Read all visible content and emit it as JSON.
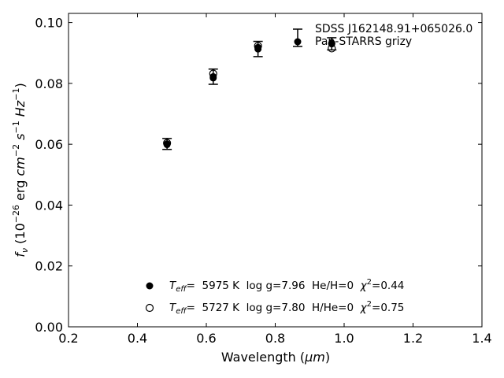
{
  "chart_data": {
    "type": "scatter",
    "title": "",
    "xlabel": "Wavelength (μm)",
    "ylabel": "f_ν (10^-26 erg cm^-2 s^-1 Hz^-1)",
    "xlim": [
      0.2,
      1.4
    ],
    "ylim": [
      0.0,
      0.103
    ],
    "x_ticks": [
      0.2,
      0.4,
      0.6,
      0.8,
      1.0,
      1.2,
      1.4
    ],
    "x_tick_labels": [
      "0.2",
      "0.4",
      "0.6",
      "0.8",
      "1.0",
      "1.2",
      "1.4"
    ],
    "y_ticks": [
      0.0,
      0.02,
      0.04,
      0.06,
      0.08,
      0.1
    ],
    "y_tick_labels": [
      "0.00",
      "0.02",
      "0.04",
      "0.06",
      "0.08",
      "0.10"
    ],
    "grid": false,
    "legend_position": "top-right",
    "legend": {
      "object": "SDSS J162148.91+065026.0",
      "survey": "Pan-STARRS grizy"
    },
    "series": [
      {
        "name": "Pan-STARRS grizy",
        "marker": "filled-circle-errorbar",
        "x": [
          0.486,
          0.62,
          0.75,
          0.964
        ],
        "y": [
          0.0601,
          0.0822,
          0.0913,
          0.093
        ],
        "yerr": [
          0.0018,
          0.0025,
          0.0025,
          0.002
        ]
      },
      {
        "name": "Teff= 5975 K log g=7.96 He/H=0 χ2=0.44",
        "marker": "filled-circle",
        "x": [
          0.486,
          0.62,
          0.75,
          0.964
        ],
        "y": [
          0.0599,
          0.0818,
          0.0918,
          0.0932
        ]
      },
      {
        "name": "Teff= 5727 K log g=7.80 H/He=0 χ2=0.75",
        "marker": "open-circle",
        "x": [
          0.486,
          0.62,
          0.75,
          0.964
        ],
        "y": [
          0.0604,
          0.0832,
          0.0923,
          0.0915
        ]
      }
    ],
    "model_legend": [
      {
        "marker": "filled-circle",
        "teff_sym": "T",
        "teff_sub": "eff",
        "teff_val": "=  5975 K  log g=7.96  He/H=0  ",
        "chi_sym": "χ",
        "chi_sup": "2",
        "chi_val": "=0.44"
      },
      {
        "marker": "open-circle",
        "teff_sym": "T",
        "teff_sub": "eff",
        "teff_val": "=  5727 K  log g=7.80  H/He=0  ",
        "chi_sym": "χ",
        "chi_sup": "2",
        "chi_val": "=0.75"
      }
    ],
    "ylabel_parts": {
      "f": "f",
      "nu": "ν",
      "p1": " (10",
      "e1": "−26",
      "p2": " erg ",
      "cm": "cm",
      "e2": "−2",
      "s": " s",
      "e3": "−1",
      "hz": " Hz",
      "e4": "−1",
      "p3": ")"
    },
    "xlabel_parts": {
      "pre": "Wavelength (",
      "mu": "μm",
      "post": ")"
    }
  }
}
